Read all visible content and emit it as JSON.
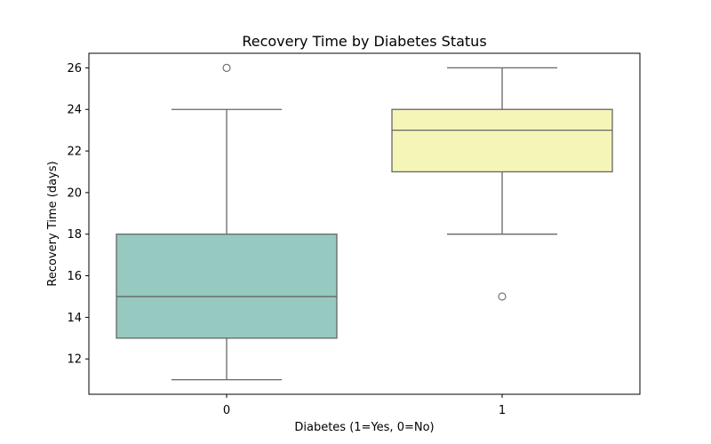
{
  "chart_data": {
    "type": "box",
    "title": "Recovery Time by Diabetes Status",
    "xlabel": "Diabetes (1=Yes, 0=No)",
    "ylabel": "Recovery Time (days)",
    "categories": [
      "0",
      "1"
    ],
    "ylim": [
      10.3,
      26.7
    ],
    "yticks": [
      12,
      14,
      16,
      18,
      20,
      22,
      24,
      26
    ],
    "grid": false,
    "boxes": [
      {
        "category": "0",
        "whisker_low": 11,
        "q1": 13,
        "median": 15,
        "q3": 18,
        "whisker_high": 24,
        "outliers": [
          26
        ],
        "color": "#96C9C0"
      },
      {
        "category": "1",
        "whisker_low": 18,
        "q1": 21,
        "median": 23,
        "q3": 24,
        "whisker_high": 26,
        "outliers": [
          15
        ],
        "color": "#F5F5B8"
      }
    ]
  },
  "colors": {
    "line": "#666666",
    "axes": "#000000"
  }
}
